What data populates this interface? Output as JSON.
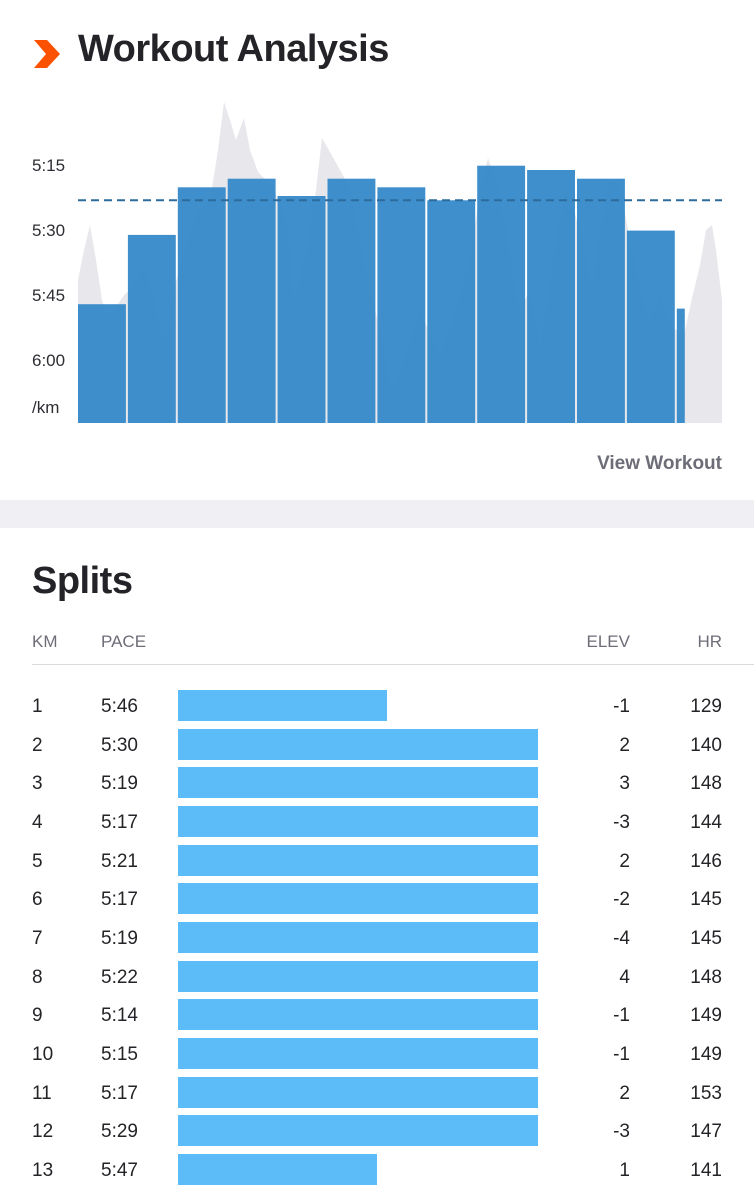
{
  "analysis": {
    "title": "Workout Analysis",
    "y_tick_labels": [
      "5:15",
      "5:30",
      "5:45",
      "6:00"
    ],
    "y_unit_label": "/km",
    "view_workout_label": "View Workout",
    "colors": {
      "brand": "#fc5200",
      "bar": "#2f86c9",
      "bar_line": "#3a92d3",
      "pace_area": "#e8e8ec",
      "average_line": "#2c6b9b"
    }
  },
  "chart_data": {
    "type": "bar",
    "categories": [
      "1",
      "2",
      "3",
      "4",
      "5",
      "6",
      "7",
      "8",
      "9",
      "10",
      "11",
      "12",
      "13"
    ],
    "values": [
      346,
      330,
      319,
      317,
      321,
      317,
      319,
      322,
      314,
      315,
      317,
      329,
      347
    ],
    "x_widths_km": [
      1,
      1,
      1,
      1,
      1,
      1,
      1,
      1,
      1,
      1,
      1,
      1,
      0.2
    ],
    "y_ticks": [
      "5:15",
      "5:30",
      "5:45",
      "6:00"
    ],
    "y_unit": "/km",
    "y_axis": "pace, seconds per km, inverted (faster pace = taller bar)",
    "average_pace_line": 322,
    "ylim": [
      295,
      368
    ]
  },
  "splits": {
    "title": "Splits",
    "headers": {
      "km": "KM",
      "pace": "PACE",
      "elev": "ELEV",
      "hr": "HR"
    },
    "bar_color": "#5bbcf7",
    "rows": [
      {
        "km": "1",
        "pace": "5:46",
        "elev": "-1",
        "hr": "129"
      },
      {
        "km": "2",
        "pace": "5:30",
        "elev": "2",
        "hr": "140"
      },
      {
        "km": "3",
        "pace": "5:19",
        "elev": "3",
        "hr": "148"
      },
      {
        "km": "4",
        "pace": "5:17",
        "elev": "-3",
        "hr": "144"
      },
      {
        "km": "5",
        "pace": "5:21",
        "elev": "2",
        "hr": "146"
      },
      {
        "km": "6",
        "pace": "5:17",
        "elev": "-2",
        "hr": "145"
      },
      {
        "km": "7",
        "pace": "5:19",
        "elev": "-4",
        "hr": "145"
      },
      {
        "km": "8",
        "pace": "5:22",
        "elev": "4",
        "hr": "148"
      },
      {
        "km": "9",
        "pace": "5:14",
        "elev": "-1",
        "hr": "149"
      },
      {
        "km": "10",
        "pace": "5:15",
        "elev": "-1",
        "hr": "149"
      },
      {
        "km": "11",
        "pace": "5:17",
        "elev": "2",
        "hr": "153"
      },
      {
        "km": "12",
        "pace": "5:29",
        "elev": "-3",
        "hr": "147"
      },
      {
        "km": "13",
        "pace": "5:47",
        "elev": "1",
        "hr": "141"
      }
    ]
  }
}
